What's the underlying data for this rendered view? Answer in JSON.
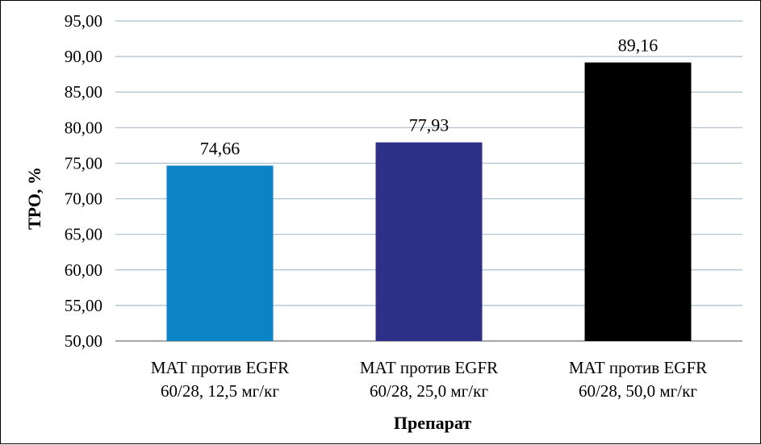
{
  "chart_data": {
    "type": "bar",
    "title": "",
    "xlabel": "Препарат",
    "ylabel": "ТРО, %",
    "ylim": [
      50,
      95
    ],
    "yticks": [
      "50,00",
      "55,00",
      "60,00",
      "65,00",
      "70,00",
      "75,00",
      "80,00",
      "85,00",
      "90,00",
      "95,00"
    ],
    "categories": [
      [
        "МАТ против EGFR",
        "60/28, 12,5 мг/кг"
      ],
      [
        "МАТ против EGFR",
        "60/28, 25,0 мг/кг"
      ],
      [
        "МАТ против EGFR",
        "60/28, 50,0 мг/кг"
      ]
    ],
    "values": [
      74.66,
      77.93,
      89.16
    ],
    "value_labels": [
      "74,66",
      "77,93",
      "89,16"
    ],
    "bar_colors": [
      "#0b83c4",
      "#2e3087",
      "#000000"
    ],
    "grid": true,
    "grid_color": "#a8c0cf",
    "legend": "none"
  }
}
